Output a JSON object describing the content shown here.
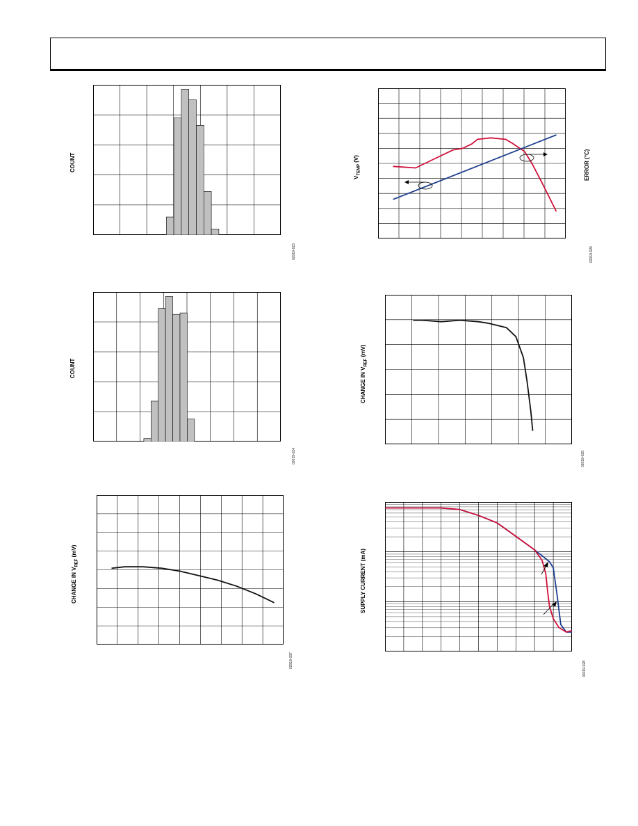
{
  "page": {
    "header": ""
  },
  "charts": {
    "c1": {
      "ylabel": "COUNT",
      "code": "02019-023"
    },
    "c2": {
      "ylabel": "COUNT",
      "code": "02019-024"
    },
    "c3": {
      "ylabel_pre": "CHANGE IN V",
      "ylabel_sub": "REF",
      "ylabel_post": " (mV)",
      "code": "02019-037"
    },
    "c4": {
      "ylabel_left_pre": "V",
      "ylabel_left_sub": "TEMP",
      "ylabel_left_post": " (V)",
      "ylabel_right": "ERROR (°C)",
      "code": "02019-026"
    },
    "c5": {
      "ylabel_pre": "CHANGE IN V",
      "ylabel_sub": "REF",
      "ylabel_post": " (mV)",
      "code": "02019-025"
    },
    "c6": {
      "ylabel": "SUPPLY CURRENT (mA)",
      "code": "02019-028"
    }
  },
  "chart_data": [
    {
      "id": "c1",
      "type": "bar",
      "grid": true,
      "ylim": [
        0,
        1
      ],
      "values": [
        0.12,
        0.78,
        0.97,
        0.9,
        0.73,
        0.29,
        0.04
      ]
    },
    {
      "id": "c2",
      "type": "bar",
      "grid": true,
      "ylim": [
        0,
        1
      ],
      "values": [
        0.02,
        0.27,
        0.89,
        0.97,
        0.85,
        0.86,
        0.15
      ]
    },
    {
      "id": "c3",
      "type": "line",
      "grid": true,
      "xlim": [
        0,
        1
      ],
      "ylim": [
        0,
        1
      ],
      "series": [
        {
          "color": "#111111",
          "x": [
            0.08,
            0.15,
            0.25,
            0.35,
            0.45,
            0.55,
            0.65,
            0.75,
            0.85,
            0.95
          ],
          "y": [
            0.51,
            0.52,
            0.52,
            0.51,
            0.49,
            0.46,
            0.43,
            0.39,
            0.34,
            0.28
          ]
        }
      ]
    },
    {
      "id": "c4",
      "type": "line",
      "grid": true,
      "xlim": [
        0,
        1
      ],
      "ylim": [
        0,
        1
      ],
      "series": [
        {
          "color": "#d0103a",
          "x": [
            0.08,
            0.2,
            0.3,
            0.4,
            0.45,
            0.5,
            0.53,
            0.6,
            0.68,
            0.72,
            0.78,
            0.82,
            0.87,
            0.91,
            0.95
          ],
          "y": [
            0.48,
            0.47,
            0.53,
            0.59,
            0.6,
            0.63,
            0.66,
            0.67,
            0.66,
            0.63,
            0.58,
            0.5,
            0.38,
            0.28,
            0.18
          ]
        },
        {
          "color": "#1f3f8f",
          "x": [
            0.08,
            0.95
          ],
          "y": [
            0.26,
            0.69
          ]
        }
      ]
    },
    {
      "id": "c5",
      "type": "line",
      "grid": true,
      "xlim": [
        0,
        1
      ],
      "ylim": [
        0,
        1
      ],
      "series": [
        {
          "color": "#111111",
          "x": [
            0.15,
            0.2,
            0.3,
            0.4,
            0.5,
            0.55,
            0.65,
            0.7,
            0.74,
            0.76,
            0.78,
            0.79
          ],
          "y": [
            0.83,
            0.83,
            0.82,
            0.83,
            0.82,
            0.81,
            0.78,
            0.72,
            0.58,
            0.42,
            0.22,
            0.09
          ]
        }
      ]
    },
    {
      "id": "c6",
      "type": "line",
      "grid": true,
      "log_y": true,
      "xlim": [
        0,
        1
      ],
      "ylim": [
        0,
        1
      ],
      "series": [
        {
          "color": "#1f3f8f",
          "x": [
            0.0,
            0.3,
            0.4,
            0.5,
            0.6,
            0.7,
            0.8,
            0.85,
            0.88,
            0.9,
            0.92,
            0.94,
            0.97,
            1.0
          ],
          "y": [
            0.96,
            0.96,
            0.95,
            0.91,
            0.86,
            0.77,
            0.68,
            0.63,
            0.6,
            0.56,
            0.38,
            0.18,
            0.13,
            0.13
          ]
        },
        {
          "color": "#d0103a",
          "x": [
            0.0,
            0.3,
            0.4,
            0.5,
            0.6,
            0.7,
            0.8,
            0.84,
            0.86,
            0.87,
            0.88,
            0.9,
            0.93,
            0.97,
            1.0
          ],
          "y": [
            0.96,
            0.96,
            0.95,
            0.91,
            0.86,
            0.77,
            0.68,
            0.61,
            0.52,
            0.4,
            0.3,
            0.22,
            0.16,
            0.13,
            0.14
          ]
        }
      ]
    }
  ]
}
